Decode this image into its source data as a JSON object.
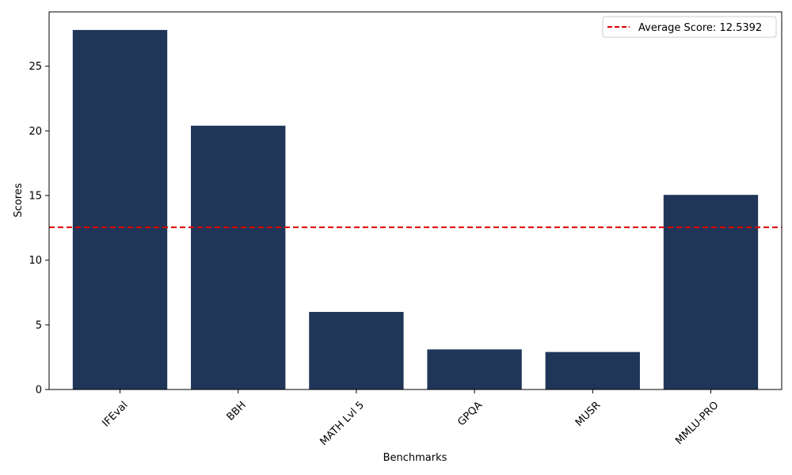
{
  "chart_data": {
    "type": "bar",
    "categories": [
      "IFEval",
      "BBH",
      "MATH Lvl 5",
      "GPQA",
      "MUSR",
      "MMLU-PRO"
    ],
    "values": [
      27.8,
      20.4,
      6.0,
      3.1,
      2.9,
      15.05
    ],
    "bar_color": "#1f3658",
    "xlabel": "Benchmarks",
    "ylabel": "Scores",
    "ylim": [
      0,
      29.2
    ],
    "yticks": [
      0,
      5,
      10,
      15,
      20,
      25
    ],
    "x_tick_rotation": 45,
    "grid": false,
    "legend": {
      "placement": "top-right",
      "label": "Average Score: 12.5392"
    },
    "reference_line": {
      "value": 12.5392,
      "color": "#e00000",
      "style": "dashed"
    }
  }
}
